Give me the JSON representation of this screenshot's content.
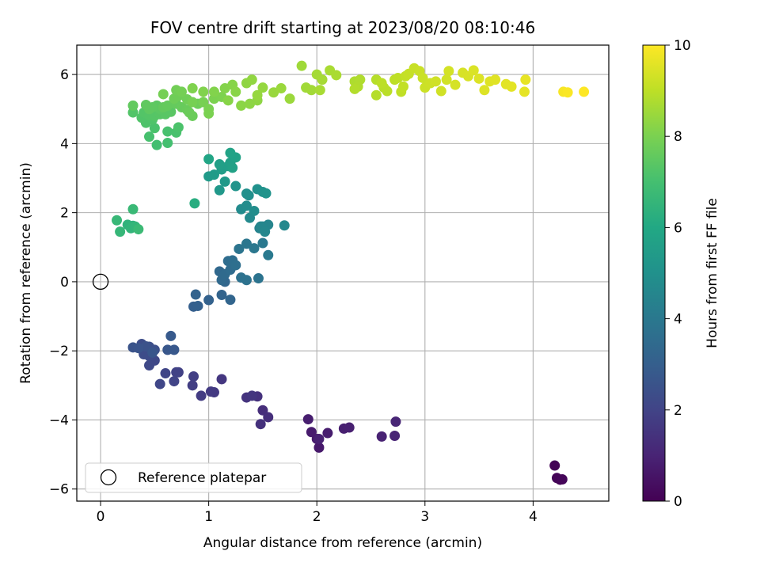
{
  "chart_data": {
    "type": "scatter",
    "title": "FOV centre drift starting at 2023/08/20 08:10:46",
    "xlabel": "Angular distance from reference (arcmin)",
    "ylabel": "Rotation from reference (arcmin)",
    "xlim": [
      -0.22,
      4.7
    ],
    "ylim": [
      -6.35,
      6.85
    ],
    "xticks": [
      0,
      1,
      2,
      3,
      4
    ],
    "yticks": [
      -6,
      -4,
      -2,
      0,
      2,
      4,
      6
    ],
    "grid": true,
    "legend": {
      "placement": "lower-left",
      "entries": [
        "Reference platepar"
      ]
    },
    "reference_point": {
      "name": "Reference platepar",
      "x": 0,
      "y": 0
    },
    "colorbar": {
      "label": "Hours from first FF file",
      "min": 0,
      "max": 10,
      "ticks": [
        0,
        2,
        4,
        6,
        8,
        10
      ],
      "colormap": "viridis"
    },
    "points": [
      [
        4.25,
        -5.73,
        0.0
      ],
      [
        4.2,
        -5.32,
        0.05
      ],
      [
        4.22,
        -5.68,
        0.1
      ],
      [
        4.27,
        -5.72,
        0.15
      ],
      [
        2.02,
        -4.8,
        0.7
      ],
      [
        2.0,
        -4.55,
        0.72
      ],
      [
        1.95,
        -4.35,
        0.75
      ],
      [
        2.1,
        -4.38,
        0.8
      ],
      [
        1.92,
        -3.98,
        0.82
      ],
      [
        2.25,
        -4.25,
        0.85
      ],
      [
        2.3,
        -4.22,
        0.88
      ],
      [
        2.02,
        -4.55,
        0.9
      ],
      [
        2.6,
        -4.48,
        0.95
      ],
      [
        2.72,
        -4.46,
        1.0
      ],
      [
        2.73,
        -4.05,
        1.05
      ],
      [
        1.5,
        -3.72,
        1.3
      ],
      [
        1.55,
        -3.92,
        1.35
      ],
      [
        1.48,
        -4.12,
        1.4
      ],
      [
        1.45,
        -3.32,
        1.45
      ],
      [
        1.35,
        -3.35,
        1.5
      ],
      [
        1.4,
        -3.3,
        1.55
      ],
      [
        1.12,
        -2.82,
        1.6
      ],
      [
        1.05,
        -3.2,
        1.65
      ],
      [
        1.02,
        -3.18,
        1.7
      ],
      [
        0.93,
        -3.3,
        1.75
      ],
      [
        0.85,
        -3.0,
        1.8
      ],
      [
        0.86,
        -2.74,
        1.85
      ],
      [
        0.72,
        -2.62,
        1.9
      ],
      [
        0.7,
        -2.62,
        1.95
      ],
      [
        0.68,
        -2.88,
        2.0
      ],
      [
        0.6,
        -2.65,
        2.05
      ],
      [
        0.55,
        -2.96,
        2.1
      ],
      [
        0.5,
        -2.28,
        2.15
      ],
      [
        0.45,
        -2.42,
        2.2
      ],
      [
        0.45,
        -2.15,
        2.25
      ],
      [
        0.4,
        -2.1,
        2.3
      ],
      [
        0.38,
        -1.8,
        2.35
      ],
      [
        0.45,
        -1.88,
        2.4
      ],
      [
        0.5,
        -1.97,
        2.45
      ],
      [
        0.42,
        -1.87,
        2.5
      ],
      [
        0.3,
        -1.9,
        2.55
      ],
      [
        0.35,
        -1.92,
        2.6
      ],
      [
        0.48,
        -2.05,
        2.65
      ],
      [
        0.62,
        -1.97,
        2.7
      ],
      [
        0.68,
        -1.97,
        2.75
      ],
      [
        0.65,
        -1.57,
        2.8
      ],
      [
        0.86,
        -0.72,
        3.0
      ],
      [
        0.9,
        -0.7,
        3.05
      ],
      [
        1.0,
        -0.53,
        3.1
      ],
      [
        0.88,
        -0.37,
        3.15
      ],
      [
        1.12,
        -0.38,
        3.2
      ],
      [
        1.2,
        -0.52,
        3.25
      ],
      [
        1.15,
        0.0,
        3.3
      ],
      [
        1.1,
        0.3,
        3.35
      ],
      [
        1.12,
        0.05,
        3.4
      ],
      [
        1.15,
        0.22,
        3.45
      ],
      [
        1.2,
        0.35,
        3.5
      ],
      [
        1.18,
        0.6,
        3.55
      ],
      [
        1.22,
        0.62,
        3.6
      ],
      [
        1.25,
        0.48,
        3.65
      ],
      [
        1.3,
        0.12,
        3.7
      ],
      [
        1.35,
        0.05,
        3.75
      ],
      [
        1.46,
        0.1,
        3.8
      ],
      [
        1.28,
        0.95,
        3.85
      ],
      [
        1.35,
        1.1,
        3.9
      ],
      [
        1.42,
        0.97,
        3.95
      ],
      [
        1.5,
        1.12,
        4.0
      ],
      [
        1.55,
        0.77,
        4.05
      ],
      [
        1.47,
        1.55,
        4.4
      ],
      [
        1.5,
        1.6,
        4.45
      ],
      [
        1.55,
        1.65,
        4.5
      ],
      [
        1.48,
        1.6,
        4.55
      ],
      [
        1.52,
        1.45,
        4.6
      ],
      [
        1.7,
        1.63,
        4.65
      ],
      [
        1.38,
        1.85,
        4.7
      ],
      [
        1.3,
        2.1,
        4.75
      ],
      [
        1.35,
        2.2,
        4.8
      ],
      [
        1.42,
        2.05,
        4.85
      ],
      [
        1.37,
        2.5,
        4.9
      ],
      [
        1.35,
        2.55,
        4.95
      ],
      [
        1.45,
        2.68,
        5.0
      ],
      [
        1.5,
        2.6,
        5.05
      ],
      [
        1.53,
        2.56,
        5.1
      ],
      [
        1.25,
        2.77,
        5.15
      ],
      [
        1.1,
        2.65,
        5.3
      ],
      [
        1.15,
        2.9,
        5.35
      ],
      [
        1.0,
        3.05,
        5.4
      ],
      [
        1.05,
        3.1,
        5.45
      ],
      [
        1.12,
        3.25,
        5.5
      ],
      [
        1.18,
        3.35,
        5.55
      ],
      [
        1.1,
        3.4,
        5.6
      ],
      [
        1.2,
        3.45,
        5.65
      ],
      [
        1.22,
        3.3,
        5.7
      ],
      [
        1.25,
        3.6,
        5.75
      ],
      [
        1.2,
        3.73,
        5.8
      ],
      [
        1.0,
        3.55,
        5.85
      ],
      [
        0.87,
        2.27,
        6.2
      ],
      [
        0.3,
        1.62,
        6.4
      ],
      [
        0.25,
        1.65,
        6.45
      ],
      [
        0.28,
        1.55,
        6.5
      ],
      [
        0.32,
        1.6,
        6.55
      ],
      [
        0.18,
        1.45,
        6.6
      ],
      [
        0.15,
        1.78,
        6.65
      ],
      [
        0.3,
        2.1,
        6.7
      ],
      [
        0.35,
        1.52,
        6.75
      ],
      [
        0.52,
        3.96,
        6.95
      ],
      [
        0.62,
        4.02,
        7.0
      ],
      [
        0.45,
        4.2,
        7.05
      ],
      [
        0.62,
        4.35,
        7.08
      ],
      [
        0.7,
        4.32,
        7.1
      ],
      [
        0.5,
        4.45,
        7.12
      ],
      [
        0.72,
        4.47,
        7.15
      ],
      [
        0.42,
        4.6,
        7.18
      ],
      [
        0.48,
        4.7,
        7.2
      ],
      [
        0.38,
        4.75,
        7.22
      ],
      [
        0.3,
        4.9,
        7.25
      ],
      [
        0.4,
        4.9,
        7.28
      ],
      [
        0.45,
        4.82,
        7.3
      ],
      [
        0.5,
        4.8,
        7.32
      ],
      [
        0.55,
        4.85,
        7.35
      ],
      [
        0.6,
        4.85,
        7.38
      ],
      [
        0.65,
        4.92,
        7.4
      ],
      [
        0.55,
        5.0,
        7.42
      ],
      [
        0.52,
        5.1,
        7.45
      ],
      [
        0.48,
        5.05,
        7.48
      ],
      [
        0.45,
        5.0,
        7.5
      ],
      [
        0.42,
        5.12,
        7.52
      ],
      [
        0.3,
        5.1,
        7.55
      ],
      [
        0.58,
        5.05,
        7.58
      ],
      [
        0.62,
        5.1,
        7.6
      ],
      [
        0.7,
        5.15,
        7.62
      ],
      [
        0.75,
        5.05,
        7.65
      ],
      [
        0.8,
        4.98,
        7.68
      ],
      [
        0.85,
        4.8,
        7.7
      ],
      [
        0.82,
        4.9,
        7.72
      ],
      [
        0.9,
        5.15,
        7.75
      ],
      [
        0.68,
        5.3,
        7.78
      ],
      [
        0.72,
        5.38,
        7.8
      ],
      [
        0.8,
        5.28,
        7.82
      ],
      [
        0.7,
        5.55,
        7.85
      ],
      [
        0.75,
        5.5,
        7.88
      ],
      [
        0.58,
        5.43,
        7.9
      ],
      [
        0.85,
        5.2,
        7.92
      ],
      [
        0.95,
        5.2,
        7.95
      ],
      [
        1.0,
        5.0,
        7.98
      ],
      [
        1.0,
        4.87,
        8.0
      ],
      [
        1.05,
        5.3,
        8.02
      ],
      [
        1.12,
        5.35,
        8.05
      ],
      [
        0.85,
        5.6,
        8.08
      ],
      [
        0.95,
        5.5,
        8.1
      ],
      [
        1.05,
        5.5,
        8.12
      ],
      [
        1.15,
        5.6,
        8.15
      ],
      [
        1.22,
        5.7,
        8.18
      ],
      [
        1.18,
        5.25,
        8.2
      ],
      [
        1.25,
        5.5,
        8.22
      ],
      [
        1.3,
        5.1,
        8.25
      ],
      [
        1.38,
        5.15,
        8.28
      ],
      [
        1.45,
        5.25,
        8.3
      ],
      [
        1.35,
        5.75,
        8.32
      ],
      [
        1.4,
        5.85,
        8.35
      ],
      [
        1.5,
        5.62,
        8.4
      ],
      [
        1.45,
        5.4,
        8.42
      ],
      [
        1.6,
        5.48,
        8.45
      ],
      [
        1.67,
        5.6,
        8.48
      ],
      [
        1.75,
        5.3,
        8.5
      ],
      [
        1.86,
        6.25,
        8.55
      ],
      [
        1.9,
        5.62,
        8.58
      ],
      [
        1.95,
        5.55,
        8.6
      ],
      [
        2.0,
        6.0,
        8.62
      ],
      [
        2.05,
        5.85,
        8.65
      ],
      [
        2.03,
        5.55,
        8.68
      ],
      [
        2.12,
        6.12,
        8.7
      ],
      [
        2.18,
        5.98,
        8.72
      ],
      [
        2.35,
        5.8,
        8.78
      ],
      [
        2.4,
        5.85,
        8.8
      ],
      [
        2.38,
        5.65,
        8.82
      ],
      [
        2.35,
        5.58,
        8.85
      ],
      [
        2.55,
        5.4,
        8.88
      ],
      [
        2.55,
        5.85,
        8.9
      ],
      [
        2.62,
        5.62,
        8.92
      ],
      [
        2.65,
        5.52,
        8.95
      ],
      [
        2.6,
        5.75,
        8.98
      ],
      [
        2.72,
        5.85,
        9.0
      ],
      [
        2.75,
        5.9,
        9.02
      ],
      [
        2.78,
        5.5,
        9.05
      ],
      [
        2.8,
        5.65,
        9.08
      ],
      [
        2.82,
        5.95,
        9.1
      ],
      [
        2.85,
        6.02,
        9.12
      ],
      [
        2.9,
        6.18,
        9.15
      ],
      [
        2.95,
        6.1,
        9.18
      ],
      [
        2.98,
        5.9,
        9.2
      ],
      [
        3.0,
        5.62,
        9.22
      ],
      [
        3.05,
        5.75,
        9.25
      ],
      [
        3.1,
        5.8,
        9.28
      ],
      [
        3.15,
        5.52,
        9.3
      ],
      [
        3.2,
        5.85,
        9.32
      ],
      [
        3.22,
        6.1,
        9.35
      ],
      [
        3.28,
        5.7,
        9.38
      ],
      [
        3.35,
        6.05,
        9.4
      ],
      [
        3.4,
        5.95,
        9.42
      ],
      [
        3.45,
        6.12,
        9.45
      ],
      [
        3.5,
        5.88,
        9.48
      ],
      [
        3.55,
        5.55,
        9.5
      ],
      [
        3.6,
        5.8,
        9.52
      ],
      [
        3.65,
        5.85,
        9.55
      ],
      [
        3.75,
        5.72,
        9.58
      ],
      [
        3.8,
        5.65,
        9.6
      ],
      [
        3.92,
        5.5,
        9.62
      ],
      [
        3.93,
        5.85,
        9.65
      ],
      [
        4.28,
        5.5,
        9.9
      ],
      [
        4.32,
        5.48,
        9.95
      ],
      [
        4.47,
        5.5,
        10.0
      ]
    ]
  }
}
